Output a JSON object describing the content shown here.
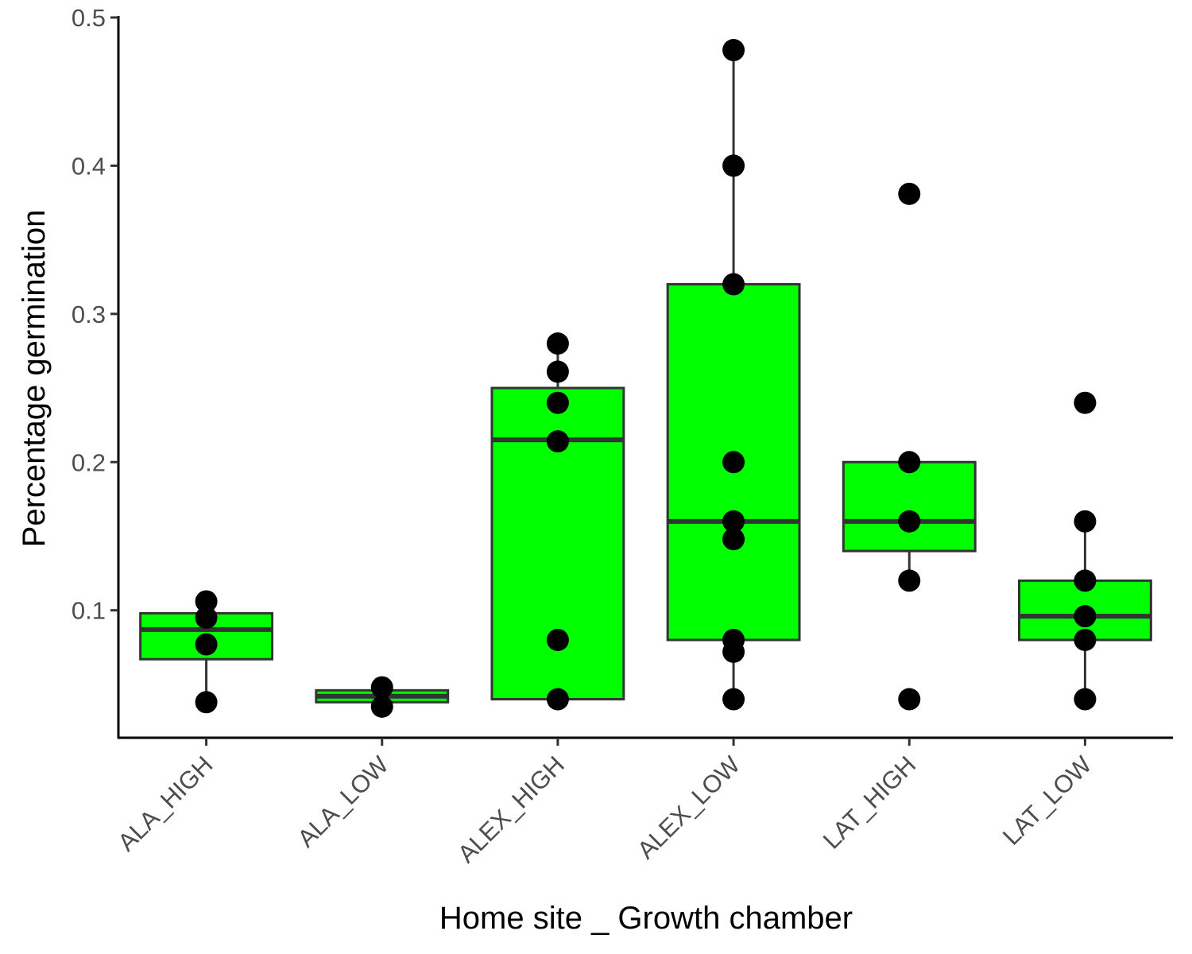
{
  "chart_data": {
    "type": "boxplot",
    "title": "",
    "xlabel": "Home site _ Growth chamber",
    "ylabel": "Percentage germination",
    "ylim": [
      0.014,
      0.5
    ],
    "yticks": [
      0.1,
      0.2,
      0.3,
      0.4,
      0.5
    ],
    "ytick_labels": [
      "0.1",
      "0.2",
      "0.3",
      "0.4",
      "0.5"
    ],
    "grid": false,
    "legend": "none",
    "box_fill": "#00ff00",
    "box_stroke": "#333333",
    "point_color": "#000000",
    "categories": [
      "ALA_HIGH",
      "ALA_LOW",
      "ALEX_HIGH",
      "ALEX_LOW",
      "LAT_HIGH",
      "LAT_LOW"
    ],
    "boxes": [
      {
        "category": "ALA_HIGH",
        "whisker_low": 0.038,
        "q1": 0.067,
        "median": 0.087,
        "q3": 0.098,
        "whisker_high": 0.106
      },
      {
        "category": "ALA_LOW",
        "whisker_low": 0.038,
        "q1": 0.038,
        "median": 0.042,
        "q3": 0.046,
        "whisker_high": 0.046
      },
      {
        "category": "ALEX_HIGH",
        "whisker_low": 0.04,
        "q1": 0.04,
        "median": 0.215,
        "q3": 0.25,
        "whisker_high": 0.28
      },
      {
        "category": "ALEX_LOW",
        "whisker_low": 0.04,
        "q1": 0.08,
        "median": 0.16,
        "q3": 0.32,
        "whisker_high": 0.478
      },
      {
        "category": "LAT_HIGH",
        "whisker_low": 0.12,
        "q1": 0.14,
        "median": 0.16,
        "q3": 0.2,
        "whisker_high": 0.2
      },
      {
        "category": "LAT_LOW",
        "whisker_low": 0.04,
        "q1": 0.08,
        "median": 0.096,
        "q3": 0.12,
        "whisker_high": 0.16
      }
    ],
    "points": [
      {
        "category": "ALA_HIGH",
        "values": [
          0.038,
          0.077,
          0.095,
          0.106
        ]
      },
      {
        "category": "ALA_LOW",
        "values": [
          0.035,
          0.048
        ]
      },
      {
        "category": "ALEX_HIGH",
        "values": [
          0.04,
          0.08,
          0.214,
          0.24,
          0.261,
          0.28
        ]
      },
      {
        "category": "ALEX_LOW",
        "values": [
          0.04,
          0.072,
          0.08,
          0.148,
          0.16,
          0.2,
          0.32,
          0.4,
          0.478
        ]
      },
      {
        "category": "LAT_HIGH",
        "values": [
          0.04,
          0.12,
          0.16,
          0.2,
          0.381
        ]
      },
      {
        "category": "LAT_LOW",
        "values": [
          0.04,
          0.08,
          0.096,
          0.12,
          0.16,
          0.24
        ]
      }
    ]
  }
}
